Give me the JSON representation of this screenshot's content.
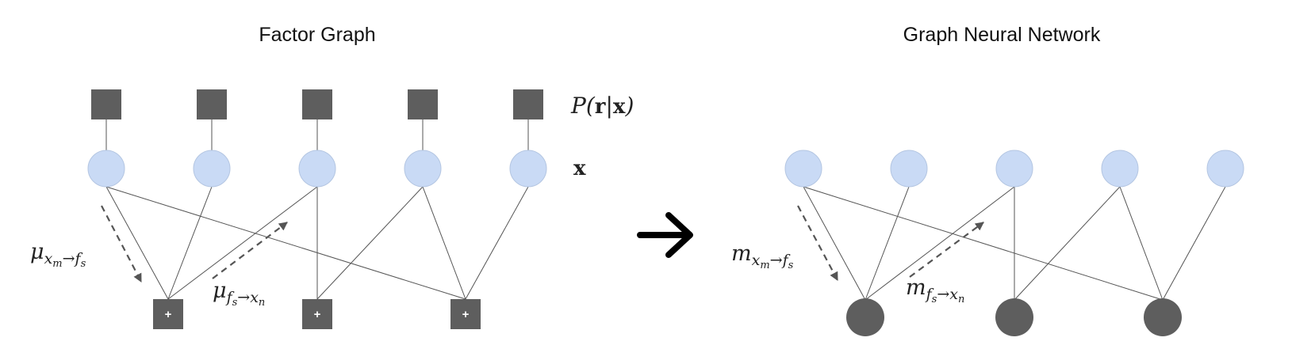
{
  "left_title": "Factor Graph",
  "right_title": "Graph Neural Network",
  "prior_label": "P(r|x)",
  "var_label": "x",
  "factor_symbol": "+",
  "labels": {
    "left_msg_var_to_factor": "μ x_m→f_s",
    "left_msg_factor_to_var": "μ f_s→x_n",
    "right_msg_var_to_factor": "m x_m→f_s",
    "right_msg_factor_to_var": "m f_s→x_n"
  },
  "colors": {
    "variable_node": "#c9daf5",
    "factor_node": "#5e5e5e",
    "edge": "#555555"
  },
  "icons": {
    "transform_arrow": "right-arrow-icon"
  }
}
